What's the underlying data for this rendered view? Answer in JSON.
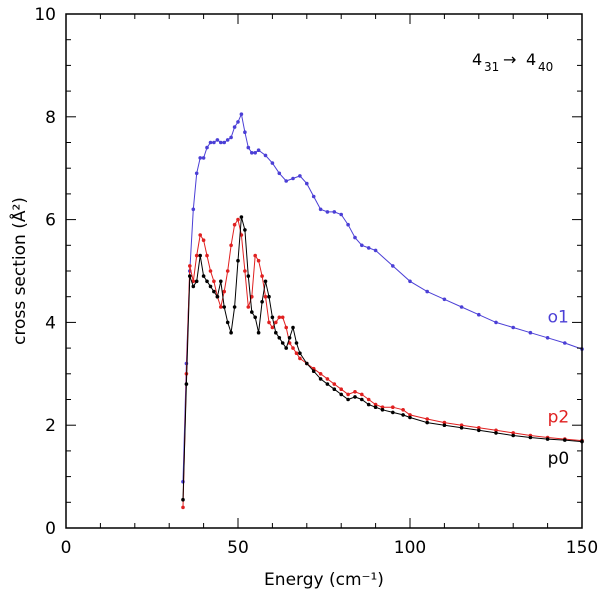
{
  "chart_data": {
    "type": "line",
    "title": "",
    "xlabel": "Energy (cm⁻¹)",
    "ylabel": "cross section (Å²)",
    "xlim": [
      0,
      150
    ],
    "ylim": [
      0,
      10
    ],
    "xticks": [
      0,
      50,
      100,
      150
    ],
    "yticks": [
      0,
      2,
      4,
      6,
      8,
      10
    ],
    "annotation": {
      "from_main": "4",
      "from_sub": "31",
      "arrow": "→",
      "to_main": "4",
      "to_sub": "40"
    },
    "series": [
      {
        "name": "o1",
        "color": "#4b3fd6",
        "x": [
          34,
          35,
          36,
          37,
          38,
          39,
          40,
          41,
          42,
          43,
          44,
          45,
          46,
          47,
          48,
          49,
          50,
          51,
          52,
          53,
          54,
          55,
          56,
          58,
          60,
          62,
          64,
          66,
          68,
          70,
          72,
          74,
          76,
          78,
          80,
          82,
          84,
          86,
          88,
          90,
          95,
          100,
          105,
          110,
          115,
          120,
          125,
          130,
          135,
          140,
          145,
          150
        ],
        "y": [
          0.9,
          3.2,
          5.0,
          6.2,
          6.9,
          7.2,
          7.2,
          7.4,
          7.5,
          7.5,
          7.55,
          7.5,
          7.5,
          7.55,
          7.6,
          7.8,
          7.9,
          8.05,
          7.7,
          7.4,
          7.3,
          7.3,
          7.35,
          7.25,
          7.1,
          6.9,
          6.75,
          6.8,
          6.85,
          6.7,
          6.45,
          6.2,
          6.15,
          6.15,
          6.1,
          5.9,
          5.65,
          5.5,
          5.45,
          5.4,
          5.1,
          4.8,
          4.6,
          4.45,
          4.3,
          4.15,
          4.0,
          3.9,
          3.8,
          3.7,
          3.6,
          3.48
        ]
      },
      {
        "name": "p2",
        "color": "#e02020",
        "x": [
          34,
          35,
          36,
          37,
          38,
          39,
          40,
          41,
          42,
          43,
          44,
          45,
          46,
          47,
          48,
          49,
          50,
          51,
          52,
          53,
          54,
          55,
          56,
          57,
          58,
          59,
          60,
          61,
          62,
          63,
          64,
          65,
          66,
          67,
          68,
          70,
          72,
          74,
          76,
          78,
          80,
          82,
          84,
          86,
          88,
          90,
          92,
          95,
          98,
          100,
          105,
          110,
          115,
          120,
          125,
          130,
          135,
          140,
          145,
          150
        ],
        "y": [
          0.4,
          3.0,
          5.1,
          4.8,
          5.3,
          5.7,
          5.6,
          5.3,
          5.0,
          4.8,
          4.5,
          4.3,
          4.6,
          5.0,
          5.5,
          5.9,
          6.0,
          5.7,
          5.0,
          4.3,
          4.5,
          5.3,
          5.2,
          4.9,
          4.5,
          4.0,
          3.9,
          4.0,
          4.1,
          4.1,
          3.9,
          3.6,
          3.5,
          3.4,
          3.3,
          3.2,
          3.1,
          3.0,
          2.9,
          2.8,
          2.7,
          2.6,
          2.65,
          2.6,
          2.5,
          2.4,
          2.35,
          2.35,
          2.3,
          2.2,
          2.12,
          2.05,
          2.0,
          1.95,
          1.9,
          1.85,
          1.8,
          1.76,
          1.73,
          1.7
        ]
      },
      {
        "name": "p0",
        "color": "#000000",
        "x": [
          34,
          35,
          36,
          37,
          38,
          39,
          40,
          41,
          42,
          43,
          44,
          45,
          46,
          47,
          48,
          49,
          50,
          51,
          52,
          53,
          54,
          55,
          56,
          57,
          58,
          59,
          60,
          61,
          62,
          63,
          64,
          65,
          66,
          67,
          68,
          70,
          72,
          74,
          76,
          78,
          80,
          82,
          84,
          86,
          88,
          90,
          92,
          95,
          98,
          100,
          105,
          110,
          115,
          120,
          125,
          130,
          135,
          140,
          145,
          150
        ],
        "y": [
          0.55,
          2.8,
          4.9,
          4.7,
          4.8,
          5.3,
          4.9,
          4.8,
          4.7,
          4.6,
          4.5,
          4.8,
          4.3,
          4.0,
          3.8,
          4.3,
          5.2,
          6.05,
          5.8,
          4.9,
          4.2,
          4.1,
          3.8,
          4.4,
          4.8,
          4.5,
          4.1,
          3.8,
          3.7,
          3.6,
          3.5,
          3.7,
          3.9,
          3.6,
          3.4,
          3.2,
          3.05,
          2.9,
          2.8,
          2.7,
          2.6,
          2.5,
          2.55,
          2.5,
          2.4,
          2.35,
          2.3,
          2.25,
          2.2,
          2.15,
          2.05,
          2.0,
          1.95,
          1.9,
          1.85,
          1.8,
          1.76,
          1.73,
          1.71,
          1.68
        ]
      }
    ],
    "series_labels": [
      {
        "name": "o1",
        "x_data": 140,
        "y_data": 4.0
      },
      {
        "name": "p2",
        "x_data": 140,
        "y_data": 2.05
      },
      {
        "name": "p0",
        "x_data": 140,
        "y_data": 1.25
      }
    ]
  }
}
